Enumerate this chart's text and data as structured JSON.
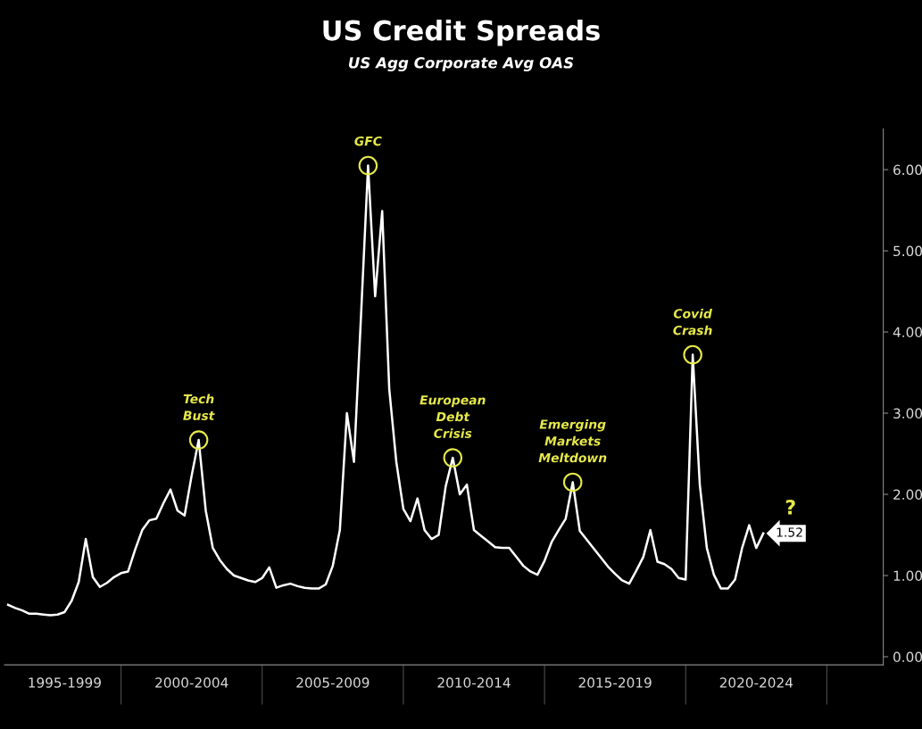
{
  "chart_data": {
    "type": "line",
    "title": "US Credit Spreads",
    "subtitle": "US Agg Corporate Avg OAS",
    "categories": [
      null,
      null,
      null,
      null,
      null,
      null,
      null,
      null,
      "1995-1999",
      null,
      null,
      null,
      null,
      null,
      null,
      null,
      null,
      null,
      null,
      null,
      null,
      null,
      null,
      null,
      null,
      null,
      "2000-2004",
      null,
      null,
      null,
      null,
      null,
      null,
      null,
      null,
      null,
      null,
      null,
      null,
      null,
      null,
      null,
      null,
      null,
      null,
      null,
      "2005-2009",
      null,
      null,
      null,
      null,
      null,
      null,
      null,
      null,
      null,
      null,
      null,
      null,
      null,
      null,
      null,
      null,
      null,
      null,
      null,
      "2010-2014",
      null,
      null,
      null,
      null,
      null,
      null,
      null,
      null,
      null,
      null,
      null,
      null,
      null,
      null,
      null,
      null,
      null,
      null,
      null,
      "2015-2019",
      null,
      null,
      null,
      null,
      null,
      null,
      null,
      null,
      null,
      null,
      null,
      null,
      null,
      null,
      null,
      null,
      null,
      null,
      null,
      "2020-2024",
      null
    ],
    "ylim": [
      -0.1,
      6.5
    ],
    "yticks": [
      {
        "value": 0,
        "label": "0.00"
      },
      {
        "value": 1,
        "label": "1.00"
      },
      {
        "value": 2,
        "label": "2.00"
      },
      {
        "value": 3,
        "label": "3.00"
      },
      {
        "value": 4,
        "label": "4.00"
      },
      {
        "value": 5,
        "label": "5.00"
      },
      {
        "value": 6,
        "label": "6.00"
      }
    ],
    "marker": "none",
    "line_style": "solid",
    "series": [
      {
        "color": "#ffffff",
        "values": [
          0.64,
          0.6,
          0.57,
          0.53,
          0.53,
          0.52,
          0.51,
          0.52,
          0.55,
          0.69,
          0.92,
          1.45,
          0.98,
          0.86,
          0.91,
          0.98,
          1.03,
          1.05,
          1.32,
          1.56,
          1.68,
          1.7,
          1.89,
          2.06,
          1.8,
          1.74,
          2.23,
          2.67,
          1.8,
          1.34,
          1.19,
          1.08,
          1.0,
          0.97,
          0.94,
          0.92,
          0.97,
          1.1,
          0.85,
          0.88,
          0.9,
          0.87,
          0.85,
          0.84,
          0.84,
          0.89,
          1.12,
          1.56,
          3.0,
          2.4,
          4.2,
          6.05,
          4.44,
          5.49,
          3.3,
          2.4,
          1.82,
          1.67,
          1.95,
          1.56,
          1.45,
          1.5,
          2.1,
          2.45,
          2.0,
          2.12,
          1.56,
          1.49,
          1.42,
          1.35,
          1.34,
          1.34,
          1.23,
          1.12,
          1.05,
          1.01,
          1.18,
          1.41,
          1.56,
          1.7,
          2.15,
          1.55,
          1.44,
          1.33,
          1.22,
          1.11,
          1.02,
          0.94,
          0.9,
          1.06,
          1.23,
          1.56,
          1.17,
          1.14,
          1.08,
          0.97,
          0.95,
          3.72,
          2.12,
          1.34,
          1.01,
          0.84,
          0.84,
          0.95,
          1.34,
          1.62,
          1.34,
          1.52
        ],
        "value_labels": [
          null,
          null,
          null,
          null,
          null,
          null,
          null,
          null,
          null,
          null,
          null,
          null,
          null,
          null,
          null,
          null,
          null,
          null,
          null,
          null,
          null,
          null,
          null,
          null,
          null,
          null,
          null,
          null,
          null,
          null,
          null,
          null,
          null,
          null,
          null,
          null,
          null,
          null,
          null,
          null,
          null,
          null,
          null,
          null,
          null,
          null,
          null,
          null,
          null,
          null,
          null,
          null,
          null,
          null,
          null,
          null,
          null,
          null,
          null,
          null,
          null,
          null,
          null,
          null,
          null,
          null,
          null,
          null,
          null,
          null,
          null,
          null,
          null,
          null,
          null,
          null,
          null,
          null,
          null,
          null,
          null,
          null,
          null,
          null,
          null,
          null,
          null,
          null,
          null,
          null,
          null,
          null,
          null,
          null,
          null,
          null,
          null,
          null,
          null,
          null,
          null,
          null,
          null,
          null,
          null,
          null,
          null,
          "1.52"
        ]
      }
    ],
    "annotations": [
      {
        "text": "Tech\nBust",
        "y": 2.67
      },
      {
        "text": "GFC",
        "y": 6.05
      },
      {
        "text": "European\nDebt\nCrisis",
        "y": 2.45
      },
      {
        "text": "Emerging\nMarkets\nMeltdown",
        "y": 2.15
      },
      {
        "text": "Covid\nCrash",
        "y": 3.72
      },
      "?"
    ]
  }
}
